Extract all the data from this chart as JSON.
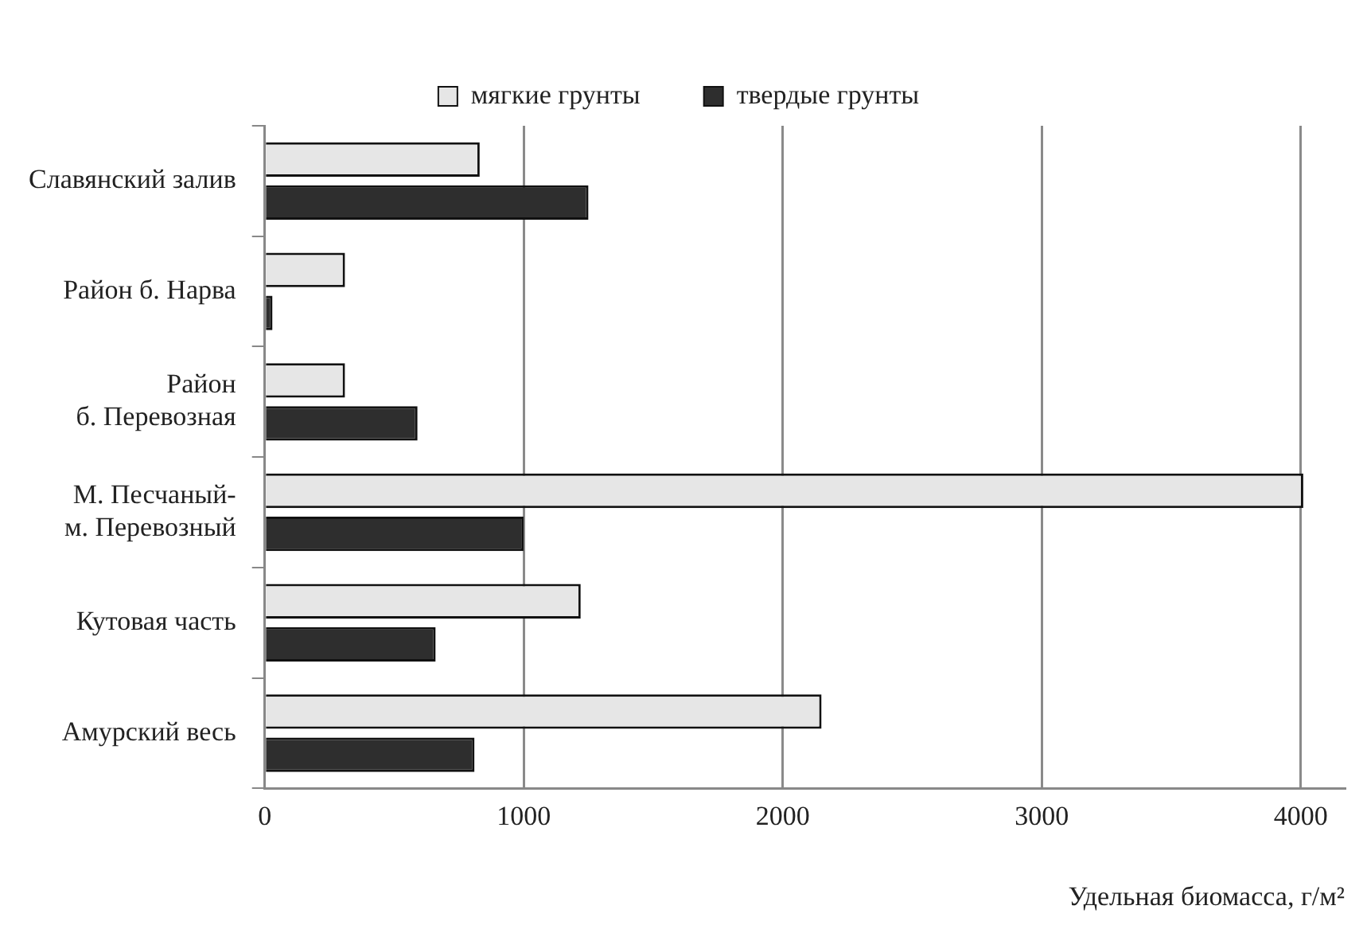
{
  "chart_data": {
    "type": "bar",
    "orientation": "horizontal",
    "xlabel": "Удельная биомасса, г/м²",
    "categories": [
      "Славянский залив",
      "Район б. Нарва",
      "Район\nб. Перевозная",
      "М. Песчаный-\nм. Перевозный",
      "Кутовая часть",
      "Амурский весь"
    ],
    "series": [
      {
        "name": "мягкие грунты",
        "color": "#e6e6e6",
        "values": [
          830,
          310,
          310,
          4010,
          1220,
          2150
        ]
      },
      {
        "name": "твердые грунты",
        "color": "#2e2e2e",
        "values": [
          1250,
          30,
          590,
          1000,
          660,
          810
        ]
      }
    ],
    "xlim": [
      0,
      4170
    ],
    "xticks": [
      0,
      1000,
      2000,
      3000,
      4000
    ],
    "grid": "x",
    "legend": "top"
  }
}
